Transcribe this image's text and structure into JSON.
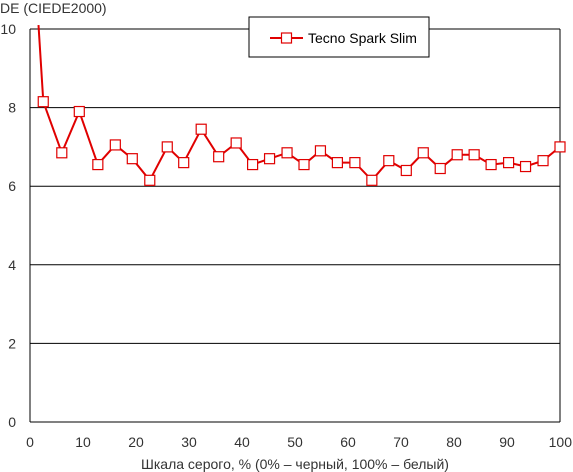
{
  "chart_data": {
    "type": "line",
    "ylabel": "DE (CIEDE2000)",
    "xlabel": "Шкала серого, % (0% – черный, 100% – белый)",
    "xlim": [
      0,
      100
    ],
    "ylim": [
      0,
      10
    ],
    "xticks": [
      0,
      10,
      20,
      30,
      40,
      50,
      60,
      70,
      80,
      90,
      100
    ],
    "yticks": [
      0,
      2,
      4,
      6,
      8,
      10
    ],
    "grid": "horizontal",
    "legend_position": "top-right",
    "series": [
      {
        "name": "Tecno Spark Slim",
        "color": "#e00000",
        "marker": "square-open",
        "x": [
          1.6,
          2.5,
          6.0,
          9.3,
          12.8,
          16.1,
          19.3,
          22.6,
          25.9,
          29.0,
          32.3,
          35.6,
          38.9,
          42.0,
          45.2,
          48.5,
          51.7,
          54.8,
          58.0,
          61.3,
          64.5,
          67.7,
          71.0,
          74.2,
          77.4,
          80.6,
          83.8,
          87.0,
          90.3,
          93.5,
          96.8,
          100.0
        ],
        "values": [
          10.1,
          8.15,
          6.85,
          7.9,
          6.55,
          7.05,
          6.7,
          6.15,
          7.0,
          6.6,
          7.45,
          6.75,
          7.1,
          6.55,
          6.7,
          6.85,
          6.55,
          6.9,
          6.6,
          6.6,
          6.15,
          6.65,
          6.4,
          6.85,
          6.45,
          6.8,
          6.8,
          6.55,
          6.6,
          6.5,
          6.65,
          7.0
        ]
      }
    ]
  }
}
